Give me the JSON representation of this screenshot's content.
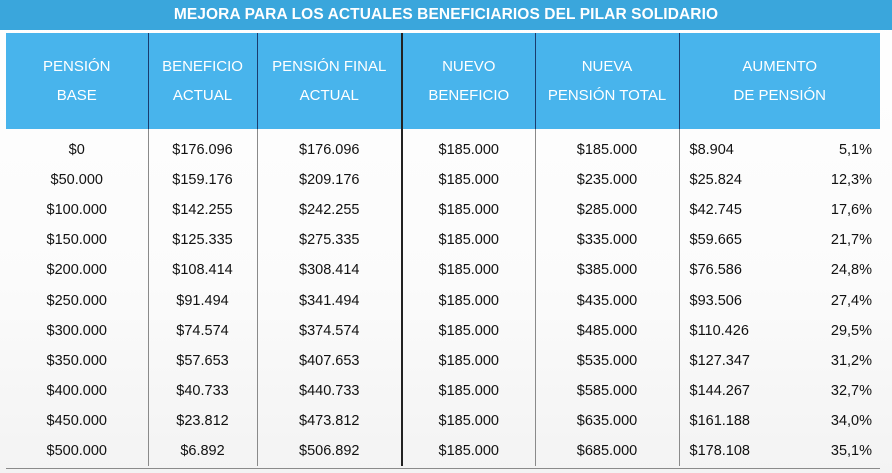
{
  "title": "MEJORA PARA LOS ACTUALES BENEFICIARIOS DEL PILAR SOLIDARIO",
  "headers": [
    {
      "line1": "PENSIÓN",
      "line2": "BASE"
    },
    {
      "line1": "BENEFICIO",
      "line2": "ACTUAL"
    },
    {
      "line1": "PENSIÓN FINAL",
      "line2": "ACTUAL"
    },
    {
      "line1": "NUEVO",
      "line2": "BENEFICIO"
    },
    {
      "line1": "NUEVA",
      "line2": "PENSIÓN TOTAL"
    },
    {
      "line1": "AUMENTO",
      "line2": "DE PENSIÓN"
    }
  ],
  "rows": [
    [
      "$0",
      "$176.096",
      "$176.096",
      "$185.000",
      "$185.000",
      "$8.904",
      "5,1%"
    ],
    [
      "$50.000",
      "$159.176",
      "$209.176",
      "$185.000",
      "$235.000",
      "$25.824",
      "12,3%"
    ],
    [
      "$100.000",
      "$142.255",
      "$242.255",
      "$185.000",
      "$285.000",
      "$42.745",
      "17,6%"
    ],
    [
      "$150.000",
      "$125.335",
      "$275.335",
      "$185.000",
      "$335.000",
      "$59.665",
      "21,7%"
    ],
    [
      "$200.000",
      "$108.414",
      "$308.414",
      "$185.000",
      "$385.000",
      "$76.586",
      "24,8%"
    ],
    [
      "$250.000",
      "$91.494",
      "$341.494",
      "$185.000",
      "$435.000",
      "$93.506",
      "27,4%"
    ],
    [
      "$300.000",
      "$74.574",
      "$374.574",
      "$185.000",
      "$485.000",
      "$110.426",
      "29,5%"
    ],
    [
      "$350.000",
      "$57.653",
      "$407.653",
      "$185.000",
      "$535.000",
      "$127.347",
      "31,2%"
    ],
    [
      "$400.000",
      "$40.733",
      "$440.733",
      "$185.000",
      "$585.000",
      "$144.267",
      "32,7%"
    ],
    [
      "$450.000",
      "$23.812",
      "$473.812",
      "$185.000",
      "$635.000",
      "$161.188",
      "34,0%"
    ],
    [
      "$500.000",
      "$6.892",
      "$506.892",
      "$185.000",
      "$685.000",
      "$178.108",
      "35,1%"
    ]
  ],
  "colors": {
    "title_bg": "#3aa6dc",
    "header_bg": "#48b4ec",
    "header_text": "#ffffff",
    "body_text": "#111111"
  }
}
